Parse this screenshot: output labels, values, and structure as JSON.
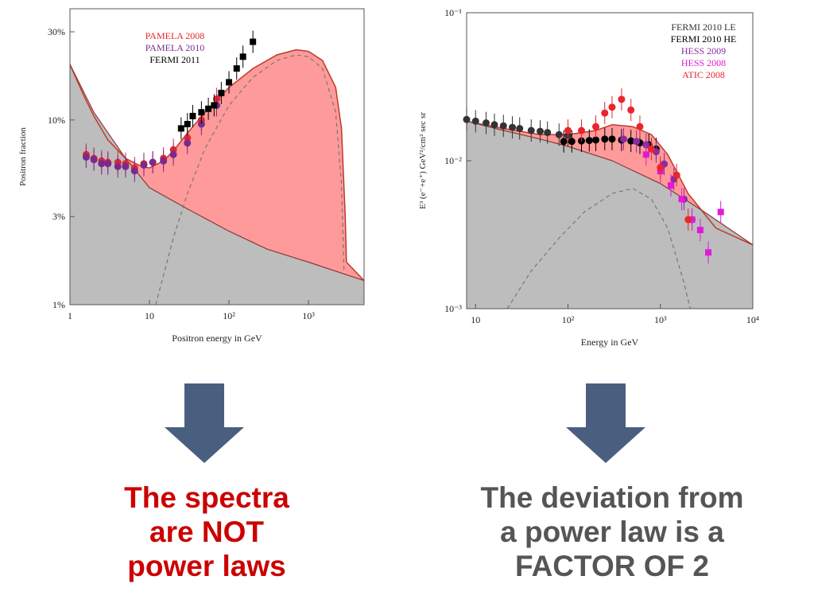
{
  "chart_data": [
    {
      "type": "scatter",
      "ylabel": "Positron  fraction",
      "xlabel": "Positron energy in GeV",
      "xscale": "log",
      "yscale": "log",
      "xlim": [
        1,
        5000
      ],
      "ylim": [
        1,
        40
      ],
      "x_ticks": [
        "1",
        "10",
        "10²",
        "10³"
      ],
      "y_ticks": [
        "1%",
        "3%",
        "10%",
        "30%"
      ],
      "legend": [
        "PAMELA 2008",
        "PAMELA 2010",
        "FERMI 2011"
      ],
      "legend_placement": "top-center",
      "grid": false,
      "colors": {
        "pamela2008": "#e8262b",
        "pamela2010": "#7a2a8c",
        "fermi2011": "#000000",
        "excess": "#ff9a9a",
        "background": "#bdbdbd"
      },
      "curves": {
        "total": [
          [
            1.0,
            20.0
          ],
          [
            1.5,
            13.5
          ],
          [
            2,
            10.5
          ],
          [
            3,
            7.8
          ],
          [
            5,
            6.2
          ],
          [
            8,
            5.6
          ],
          [
            10,
            5.5
          ],
          [
            15,
            6.0
          ],
          [
            20,
            6.8
          ],
          [
            30,
            8.5
          ],
          [
            50,
            11.0
          ],
          [
            100,
            15.0
          ],
          [
            200,
            19.0
          ],
          [
            400,
            22.5
          ],
          [
            700,
            24.0
          ],
          [
            1000,
            23.5
          ],
          [
            1500,
            21.0
          ],
          [
            2200,
            15.0
          ],
          [
            2600,
            9.0
          ],
          [
            2900,
            3.0
          ],
          [
            3000,
            1.7
          ],
          [
            5000,
            1.35
          ]
        ],
        "background": [
          [
            1.0,
            20.0
          ],
          [
            2,
            11.0
          ],
          [
            5,
            6.2
          ],
          [
            10,
            4.3
          ],
          [
            30,
            3.3
          ],
          [
            100,
            2.5
          ],
          [
            300,
            2.0
          ],
          [
            1000,
            1.7
          ],
          [
            5000,
            1.35
          ]
        ],
        "excess_dashed": [
          [
            12,
            1.0
          ],
          [
            20,
            2.3
          ],
          [
            30,
            4.0
          ],
          [
            50,
            7.0
          ],
          [
            100,
            12.0
          ],
          [
            200,
            17.0
          ],
          [
            400,
            21.0
          ],
          [
            700,
            22.5
          ],
          [
            1000,
            22.0
          ],
          [
            1500,
            19.0
          ],
          [
            2200,
            11.0
          ],
          [
            2600,
            4.5
          ],
          [
            2800,
            1.5
          ]
        ]
      },
      "series": [
        {
          "name": "PAMELA 2008",
          "points": [
            [
              1.6,
              6.5
            ],
            [
              2.0,
              6.2
            ],
            [
              2.5,
              6.0
            ],
            [
              3.0,
              5.9
            ],
            [
              4.0,
              5.9
            ],
            [
              5.0,
              5.8
            ],
            [
              6.5,
              5.5
            ],
            [
              8.5,
              5.8
            ],
            [
              11,
              5.9
            ],
            [
              15,
              6.2
            ],
            [
              20,
              6.9
            ],
            [
              30,
              8.0
            ],
            [
              45,
              10.0
            ],
            [
              70,
              13.0
            ]
          ]
        },
        {
          "name": "PAMELA 2010",
          "points": [
            [
              1.6,
              6.3
            ],
            [
              2.0,
              6.1
            ],
            [
              2.5,
              5.8
            ],
            [
              3.0,
              5.8
            ],
            [
              4.0,
              5.6
            ],
            [
              5.0,
              5.6
            ],
            [
              6.5,
              5.3
            ],
            [
              8.5,
              5.7
            ],
            [
              11,
              5.9
            ],
            [
              15,
              6.0
            ],
            [
              20,
              6.5
            ],
            [
              30,
              7.5
            ],
            [
              45,
              9.5
            ],
            [
              70,
              12.0
            ]
          ]
        },
        {
          "name": "FERMI 2011",
          "points": [
            [
              25,
              9.0
            ],
            [
              30,
              9.5
            ],
            [
              35,
              10.5
            ],
            [
              45,
              11.0
            ],
            [
              55,
              11.5
            ],
            [
              65,
              12.0
            ],
            [
              80,
              14.0
            ],
            [
              100,
              16.0
            ],
            [
              125,
              19.0
            ],
            [
              150,
              22.0
            ],
            [
              200,
              26.5
            ]
          ]
        }
      ]
    },
    {
      "type": "scatter",
      "ylabel": "E³ (e⁻+e⁺) GeV²/cm² sec sr",
      "xlabel": "Energy in GeV",
      "xscale": "log",
      "yscale": "log",
      "xlim": [
        8,
        10000
      ],
      "ylim": [
        0.001,
        0.1
      ],
      "x_ticks": [
        "10",
        "10²",
        "10³",
        "10⁴"
      ],
      "y_ticks": [
        "10⁻³",
        "10⁻²",
        "10⁻¹"
      ],
      "legend": [
        "FERMI 2010 LE",
        "FERMI 2010 HE",
        "HESS 2009",
        "HESS 2008",
        "ATIC 2008"
      ],
      "legend_placement": "top-right",
      "grid": false,
      "colors": {
        "fermi2010le": "#333333",
        "fermi2010he": "#000000",
        "hess2009": "#8a2ba0",
        "hess2008": "#e01ad8",
        "atic2008": "#e8262b",
        "excess": "#ff9a9a",
        "background": "#bdbdbd"
      },
      "curves": {
        "total": [
          [
            8,
            0.0185
          ],
          [
            20,
            0.0165
          ],
          [
            50,
            0.015
          ],
          [
            100,
            0.015
          ],
          [
            200,
            0.016
          ],
          [
            300,
            0.0175
          ],
          [
            500,
            0.017
          ],
          [
            800,
            0.015
          ],
          [
            1200,
            0.011
          ],
          [
            2000,
            0.006
          ],
          [
            4000,
            0.0035
          ],
          [
            10000,
            0.0027
          ]
        ],
        "background": [
          [
            8,
            0.0185
          ],
          [
            20,
            0.016
          ],
          [
            50,
            0.014
          ],
          [
            100,
            0.0125
          ],
          [
            300,
            0.01
          ],
          [
            1000,
            0.007
          ],
          [
            3000,
            0.0045
          ],
          [
            10000,
            0.0027
          ]
        ],
        "excess_dashed": [
          [
            22,
            0.001
          ],
          [
            40,
            0.0018
          ],
          [
            80,
            0.003
          ],
          [
            150,
            0.0045
          ],
          [
            300,
            0.006
          ],
          [
            500,
            0.0065
          ],
          [
            800,
            0.0055
          ],
          [
            1200,
            0.0035
          ],
          [
            1800,
            0.0015
          ],
          [
            2100,
            0.001
          ]
        ]
      },
      "series": [
        {
          "name": "FERMI 2010 LE",
          "points": [
            [
              8,
              0.019
            ],
            [
              10,
              0.0185
            ],
            [
              13,
              0.018
            ],
            [
              16,
              0.0175
            ],
            [
              20,
              0.0172
            ],
            [
              25,
              0.0168
            ],
            [
              30,
              0.0165
            ],
            [
              40,
              0.016
            ],
            [
              50,
              0.0158
            ],
            [
              60,
              0.0155
            ],
            [
              80,
              0.015
            ],
            [
              100,
              0.0148
            ]
          ]
        },
        {
          "name": "FERMI 2010 HE",
          "points": [
            [
              90,
              0.0135
            ],
            [
              110,
              0.0135
            ],
            [
              140,
              0.0136
            ],
            [
              170,
              0.0137
            ],
            [
              200,
              0.0138
            ],
            [
              250,
              0.014
            ],
            [
              300,
              0.014
            ],
            [
              380,
              0.0138
            ],
            [
              480,
              0.0136
            ],
            [
              600,
              0.0132
            ],
            [
              750,
              0.0128
            ],
            [
              900,
              0.012
            ]
          ]
        },
        {
          "name": "HESS 2009",
          "points": [
            [
              400,
              0.014
            ],
            [
              550,
              0.0135
            ],
            [
              700,
              0.0128
            ],
            [
              900,
              0.0115
            ],
            [
              1100,
              0.0095
            ],
            [
              1400,
              0.0075
            ],
            [
              1800,
              0.0055
            ],
            [
              2200,
              0.004
            ]
          ]
        },
        {
          "name": "HESS 2008",
          "points": [
            [
              700,
              0.011
            ],
            [
              1000,
              0.0085
            ],
            [
              1300,
              0.0068
            ],
            [
              1700,
              0.0055
            ],
            [
              2200,
              0.004
            ],
            [
              2700,
              0.0034
            ],
            [
              3300,
              0.0024
            ],
            [
              4500,
              0.0045
            ]
          ]
        },
        {
          "name": "ATIC 2008",
          "points": [
            [
              100,
              0.016
            ],
            [
              140,
              0.016
            ],
            [
              200,
              0.017
            ],
            [
              250,
              0.021
            ],
            [
              300,
              0.023
            ],
            [
              380,
              0.026
            ],
            [
              480,
              0.022
            ],
            [
              600,
              0.017
            ],
            [
              800,
              0.012
            ],
            [
              1000,
              0.009
            ],
            [
              1500,
              0.008
            ],
            [
              2000,
              0.004
            ]
          ]
        }
      ]
    }
  ],
  "captions": {
    "left": [
      "The spectra",
      "are NOT",
      "power laws"
    ],
    "right": [
      "The deviation from",
      "a power law is a",
      "FACTOR OF 2"
    ]
  },
  "icons": {
    "arrow": "down-arrow-icon",
    "arrow_color": "#4a5f80"
  }
}
